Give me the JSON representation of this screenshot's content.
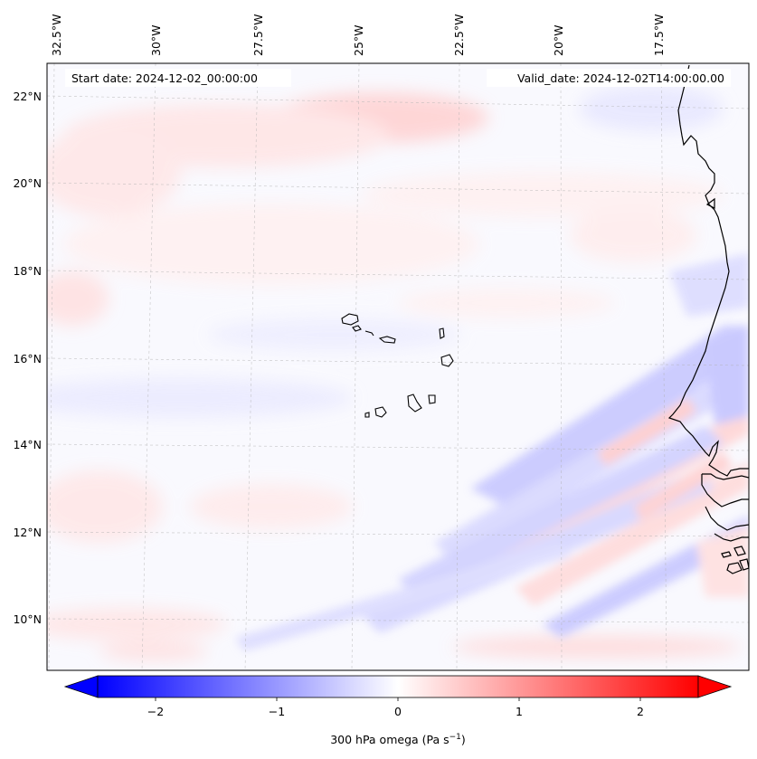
{
  "header": {
    "start_date": "Start date: 2024-12-02_00:00:00",
    "valid_date": "Valid_date: 2024-12-02T14:00:00.00"
  },
  "lon_labels": [
    "32.5°W",
    "30°W",
    "27.5°W",
    "25°W",
    "22.5°W",
    "20°W",
    "17.5°W"
  ],
  "lat_labels": [
    "22°N",
    "20°N",
    "18°N",
    "16°N",
    "14°N",
    "12°N",
    "10°N"
  ],
  "colorbar": {
    "ticks": [
      "−2",
      "−1",
      "0",
      "1",
      "2"
    ],
    "label_main": "300 hPa omega (Pa s",
    "label_exp": "−1",
    "label_close": ")",
    "range": [
      -2.6,
      2.6
    ],
    "colormap": "bwr",
    "neg_color": "#0000ff",
    "mid_color": "#ffffff",
    "pos_color": "#ff0000"
  },
  "colors": {
    "coastline": "#000000",
    "gridline": "#b0b0b0"
  }
}
